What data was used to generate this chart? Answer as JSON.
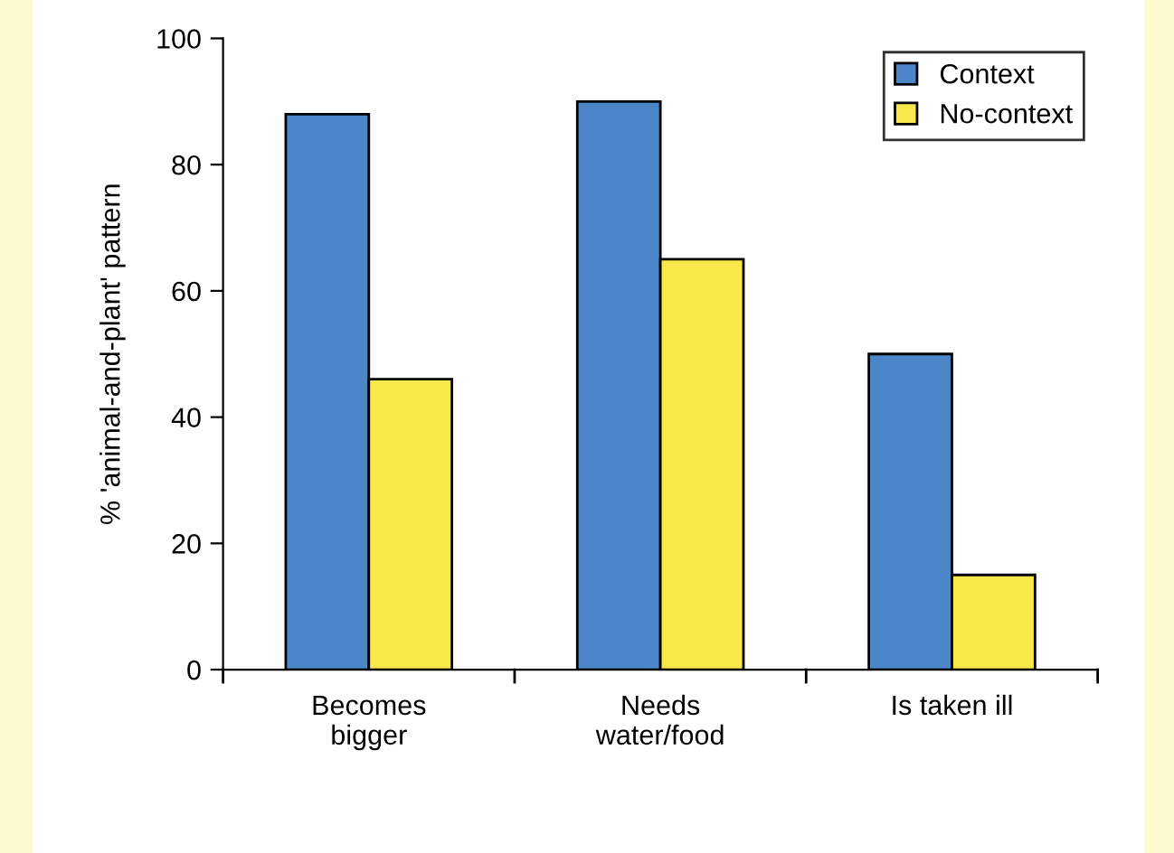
{
  "chart_data": {
    "type": "bar",
    "ylabel": "% 'animal-and-plant' pattern",
    "categories": [
      "Becomes\nbigger",
      "Needs\nwater/food",
      "Is taken ill"
    ],
    "series": [
      {
        "name": "Context",
        "color": "#4a86c8",
        "values": [
          88,
          90,
          50
        ]
      },
      {
        "name": "No-context",
        "color": "#f8e84a",
        "values": [
          46,
          65,
          15
        ]
      }
    ],
    "ylim": [
      0,
      100
    ],
    "yticks": [
      0,
      20,
      40,
      60,
      80,
      100
    ],
    "grid": false,
    "legend": "top right"
  }
}
